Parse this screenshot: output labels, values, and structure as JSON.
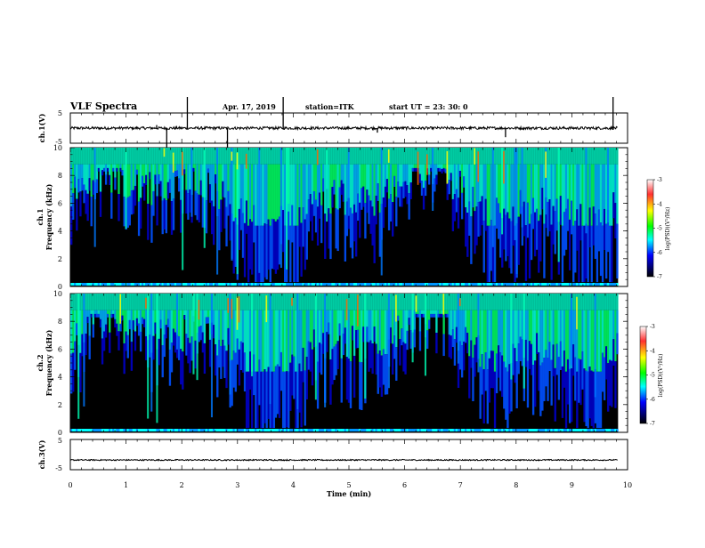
{
  "header": {
    "title": "VLF Spectra",
    "date": "Apr. 17, 2019",
    "station": "station=ITK",
    "start": "start UT =  23: 30: 0"
  },
  "chart_data": [
    {
      "type": "line",
      "panel": "ch1-waveform",
      "ylabel": "ch.1(V)",
      "ylim": [
        -5,
        5
      ],
      "y_ticks": [
        "5",
        "-5"
      ],
      "xlim": [
        0,
        10
      ],
      "baseline_v": 0.0,
      "spikes": [
        {
          "t": 2.1,
          "v": 5.0
        },
        {
          "t": 3.82,
          "v": 5.0
        },
        {
          "t": 9.74,
          "v": 5.0
        },
        {
          "t": 1.73,
          "v": -5.0
        },
        {
          "t": 2.82,
          "v": -5.0
        },
        {
          "t": 7.81,
          "v": -3.0
        },
        {
          "t": 1.55,
          "v": 1.0
        },
        {
          "t": 5.51,
          "v": -1.5
        }
      ]
    },
    {
      "type": "heatmap",
      "panel": "ch1-spectrogram",
      "ylabel_1": "ch.1",
      "ylabel_2": "Frequency (kHz)",
      "ylim": [
        0,
        10
      ],
      "y_ticks": [
        "0",
        "2",
        "4",
        "6",
        "8",
        "10"
      ],
      "xlim": [
        0,
        9.83
      ],
      "colorbar": {
        "label": "log(PSD)(V²/Hz)",
        "range": [
          -7,
          -3
        ],
        "ticks": [
          "-3",
          "-4",
          "-5",
          "-6",
          "-7"
        ]
      }
    },
    {
      "type": "heatmap",
      "panel": "ch2-spectrogram",
      "ylabel_1": "ch.2",
      "ylabel_2": "Frequency (kHz)",
      "ylim": [
        0,
        10
      ],
      "y_ticks": [
        "0",
        "2",
        "4",
        "6",
        "8",
        "10"
      ],
      "xlim": [
        0,
        9.83
      ],
      "colorbar": {
        "label": "log(PSD)(V²/Hz)",
        "range": [
          -7,
          -3
        ],
        "ticks": [
          "-3",
          "-4",
          "-5",
          "-6",
          "-7"
        ]
      }
    },
    {
      "type": "line",
      "panel": "ch3-waveform",
      "ylabel": "ch.3(V)",
      "ylim": [
        -5,
        5
      ],
      "y_ticks": [
        "5",
        "-5"
      ],
      "xlim": [
        0,
        10
      ],
      "baseline_v": -1.8,
      "x_ticks": [
        "0",
        "1",
        "2",
        "3",
        "4",
        "5",
        "6",
        "7",
        "8",
        "9",
        "10"
      ],
      "xlabel": "Time (min)"
    }
  ]
}
